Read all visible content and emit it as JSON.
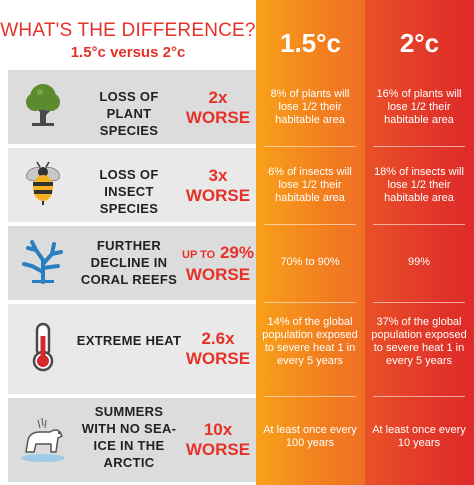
{
  "header": {
    "title": "WHAT'S THE DIFFERENCE?",
    "subtitle": "1.5°c versus 2°c",
    "col_a": "1.5°c",
    "col_b": "2°c"
  },
  "rows": [
    {
      "icon": "tree-icon",
      "label": "LOSS OF PLANT SPECIES",
      "mult_prefix": "",
      "mult_value": "2x",
      "mult_word": "WORSE",
      "a": "8% of plants will lose 1/2 their habitable area",
      "b": "16% of plants will lose 1/2 their habitable area"
    },
    {
      "icon": "bee-icon",
      "label": "LOSS OF INSECT SPECIES",
      "mult_prefix": "",
      "mult_value": "3x",
      "mult_word": "WORSE",
      "a": "6% of insects will lose 1/2 their habitable area",
      "b": "18% of insects will lose 1/2 their habitable area"
    },
    {
      "icon": "coral-icon",
      "label": "FURTHER DECLINE IN CORAL REEFS",
      "mult_prefix": "UP TO",
      "mult_value": "29%",
      "mult_word": "WORSE",
      "a": "70% to 90%",
      "b": "99%"
    },
    {
      "icon": "thermometer-icon",
      "label": "EXTREME HEAT",
      "mult_prefix": "",
      "mult_value": "2.6x",
      "mult_word": "WORSE",
      "a": "14% of the global population exposed to severe heat 1 in every 5 years",
      "b": "37% of the global population exposed to severe heat 1 in every 5 years"
    },
    {
      "icon": "polar-bear-icon",
      "label": "SUMMERS WITH NO SEA-ICE IN THE ARCTIC",
      "mult_prefix": "",
      "mult_value": "10x",
      "mult_word": "WORSE",
      "a": "At least once every 100 years",
      "b": "At least once every 10 years"
    }
  ],
  "colors": {
    "accent_red": "#e63128",
    "col_a": "#f2801f",
    "col_b": "#e33b29",
    "row_bg": "#dcdcdc"
  }
}
